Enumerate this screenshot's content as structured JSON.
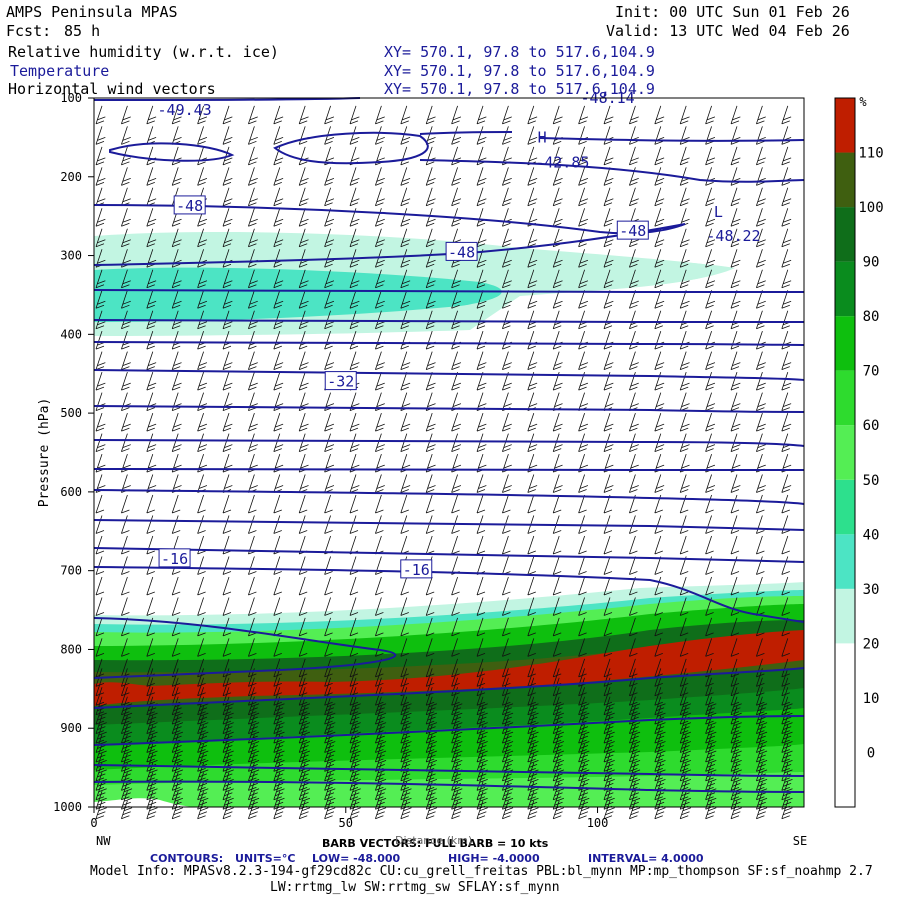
{
  "header": {
    "model": "AMPS Peninsula MPAS",
    "fcst_label": "Fcst:",
    "fcst_value": "85 h",
    "init": "Init: 00 UTC Sun 01 Feb 26",
    "valid": "Valid: 13 UTC Wed 04 Feb 26",
    "fields": [
      {
        "name": "Relative humidity (w.r.t. ice)",
        "xy": "XY= 570.1, 97.8 to 517.6,104.9"
      },
      {
        "name": "Temperature",
        "xy": "XY= 570.1, 97.8 to 517.6,104.9"
      },
      {
        "name": "Horizontal wind vectors",
        "xy": "XY= 570.1, 97.8 to 517.6,104.9"
      }
    ]
  },
  "footer": {
    "barb": "BARB VECTORS:  FULL BARB = 10 kts",
    "xlabel_overlap": "Distance (km)",
    "contours_label": "CONTOURS:",
    "units": "UNITS=°C",
    "low": "LOW=  -48.000",
    "high": "HIGH=  -4.0000",
    "interval": "INTERVAL=   4.0000",
    "model_info": "Model Info: MPASv8.2.3-194-gf29cd82c CU:cu_grell_freitas PBL:bl_mynn MP:mp_thompson SF:sf_noahmp 2.7",
    "model_info2": "LW:rrtmg_lw SW:rrtmg_sw SFLAY:sf_mynn"
  },
  "chart_data": {
    "type": "heatmap",
    "title": "Relative humidity (w.r.t. ice), Temperature, Horizontal wind vectors",
    "xlabel": "Distance (km)",
    "ylabel": "Pressure (hPa)",
    "xlim": [
      0,
      141
    ],
    "ylim": [
      1000,
      100
    ],
    "x_ticks": [
      0,
      50,
      100
    ],
    "y_ticks": [
      100,
      200,
      300,
      400,
      500,
      600,
      700,
      800,
      900,
      1000
    ],
    "x_end_labels": {
      "left": "NW",
      "right": "SE"
    },
    "colorbar": {
      "unit": "%",
      "levels": [
        0,
        10,
        20,
        30,
        40,
        50,
        60,
        70,
        80,
        90,
        100,
        110
      ],
      "colors": [
        "#ffffff",
        "#ffffff",
        "#ffffff",
        "#c2f5e2",
        "#4ce4c4",
        "#2de08d",
        "#54ee54",
        "#2edb2e",
        "#0ebf0e",
        "#0a8c1e",
        "#0f6e1a",
        "#3f5f10",
        "#bf1e00"
      ]
    },
    "rh_bands": [
      {
        "x": [
          0,
          141
        ],
        "p": [
          270,
          380
        ],
        "rh": 35,
        "note": "moist layer near 300 hPa"
      },
      {
        "x": [
          0,
          141
        ],
        "p": [
          760,
          1000
        ],
        "rh": 80,
        "note": "moist low levels"
      },
      {
        "x": [
          0,
          141
        ],
        "p": [
          845,
          880
        ],
        "rh": 110,
        "note": "saturated layer"
      }
    ],
    "temperature_contours": [
      {
        "label": "-49.43",
        "x": 18,
        "p": 115
      },
      {
        "label": "-48.14",
        "x": 102,
        "p": 100
      },
      {
        "label": "H",
        "x": 89,
        "p": 150
      },
      {
        "label": "-42.85",
        "x": 93,
        "p": 182
      },
      {
        "label": "-48",
        "x": 19,
        "p": 237
      },
      {
        "label": "L",
        "x": 124,
        "p": 245
      },
      {
        "label": "-48.22",
        "x": 127,
        "p": 275
      },
      {
        "label": "-48",
        "x": 107,
        "p": 269
      },
      {
        "label": "-48",
        "x": 73,
        "p": 296
      },
      {
        "label": "-32",
        "x": 49,
        "p": 460
      },
      {
        "label": "-16",
        "x": 16,
        "p": 685
      },
      {
        "label": "-16",
        "x": 64,
        "p": 699
      }
    ],
    "wind": {
      "full_barb_kts": 10
    }
  }
}
